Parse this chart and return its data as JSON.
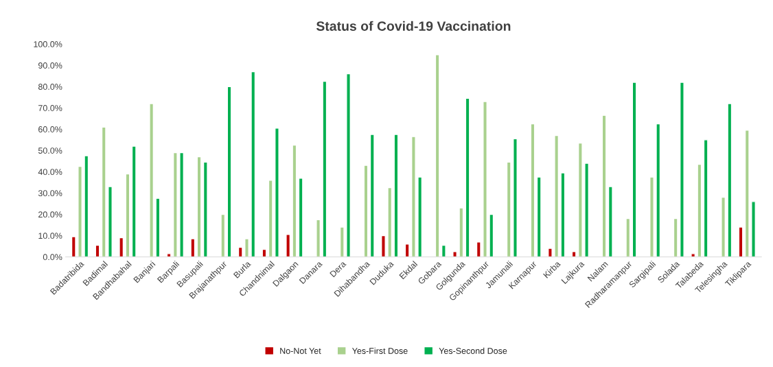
{
  "chart_data": {
    "type": "bar",
    "title": "Status of Covid-19 Vaccination",
    "categories": [
      "Badatribida",
      "Badimal",
      "Bandhabahal",
      "Banjari",
      "Barpali",
      "Basupali",
      "Brajanathpur",
      "Burla",
      "Chandnimal",
      "Dalgaon",
      "Danara",
      "Dera",
      "Dihabandha",
      "Duduka",
      "Ekdal",
      "Gobara",
      "Golgunda",
      "Gopinanthpur",
      "Jamunali",
      "Karnapur",
      "Kirba",
      "Lajkura",
      "Nalam",
      "Radharamanpur",
      "Sargipali",
      "Solada",
      "Talabeda",
      "Telesingha",
      "Tiklipara"
    ],
    "series": [
      {
        "name": "No-Not Yet",
        "color": "#c00000",
        "values": [
          9.5,
          5.5,
          9,
          null,
          1.5,
          8.5,
          null,
          4.5,
          3.5,
          10.5,
          null,
          null,
          null,
          10,
          6,
          null,
          2.5,
          7,
          null,
          null,
          4,
          2.5,
          null,
          null,
          null,
          null,
          1.5,
          null,
          14
        ]
      },
      {
        "name": "Yes-First Dose",
        "color": "#a9d18e",
        "values": [
          42.5,
          61,
          39,
          72,
          49,
          47,
          20,
          8.5,
          36,
          52.5,
          17.5,
          14,
          43,
          32.5,
          56.5,
          95,
          23,
          73,
          44.5,
          62.5,
          57,
          53.5,
          66.5,
          18,
          37.5,
          18,
          43.5,
          28,
          59.5
        ]
      },
      {
        "name": "Yes-Second Dose",
        "color": "#00b050",
        "values": [
          47.5,
          33,
          52,
          27.5,
          49,
          44.5,
          80,
          87,
          60.5,
          37,
          82.5,
          86,
          57.5,
          57.5,
          37.5,
          5.5,
          74.5,
          20,
          55.5,
          37.5,
          39.5,
          44,
          33,
          82,
          62.5,
          82,
          55,
          72,
          26
        ]
      }
    ],
    "ylim": [
      0,
      100
    ],
    "yticks": [
      {
        "value": 0,
        "label": "0.0%"
      },
      {
        "value": 10,
        "label": "10.0%"
      },
      {
        "value": 20,
        "label": "20.0%"
      },
      {
        "value": 30,
        "label": "30.0%"
      },
      {
        "value": 40,
        "label": "40.0%"
      },
      {
        "value": 50,
        "label": "50.0%"
      },
      {
        "value": 60,
        "label": "60.0%"
      },
      {
        "value": 70,
        "label": "70.0%"
      },
      {
        "value": 80,
        "label": "80.0%"
      },
      {
        "value": 90,
        "label": "90.0%"
      },
      {
        "value": 100,
        "label": "100.0%"
      }
    ],
    "grid": false,
    "legend": "bottom"
  }
}
